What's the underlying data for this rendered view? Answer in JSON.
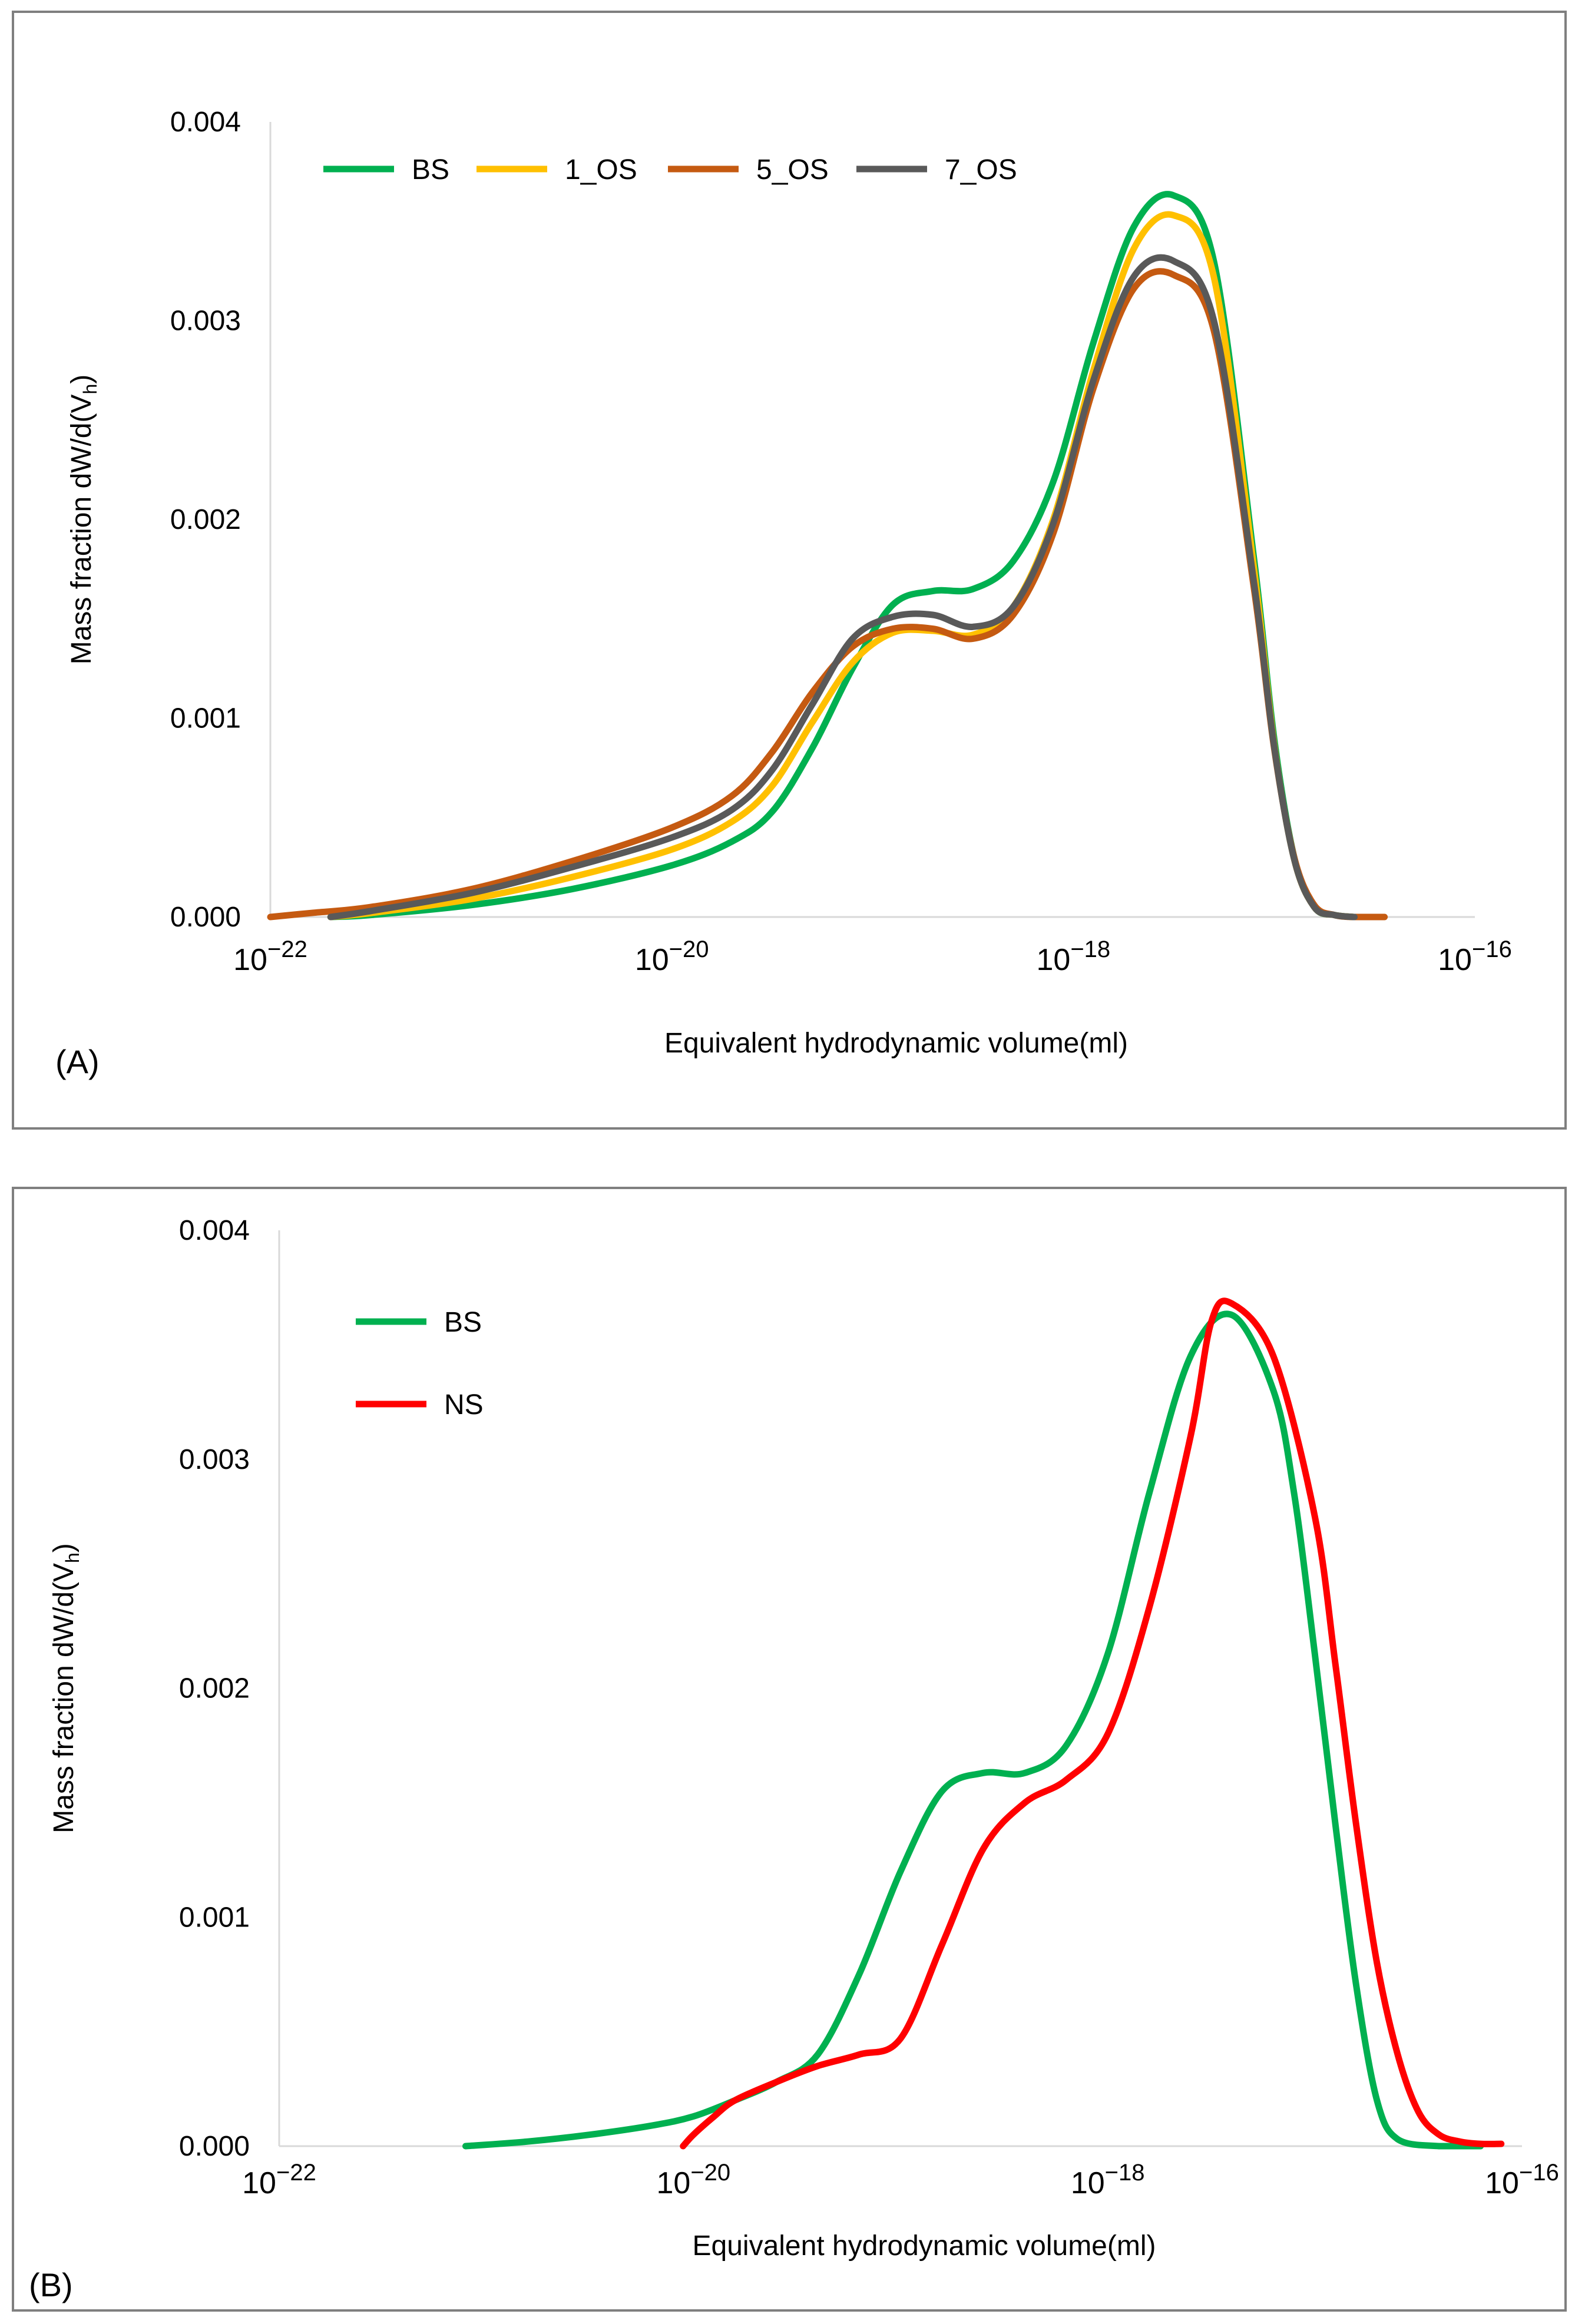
{
  "chart_data": [
    {
      "type": "line",
      "panel_label": "(A)",
      "xscale": "log",
      "xlabel": "Equivalent hydrodynamic volume(ml)",
      "ylabel": "Mass fraction dW/d(V",
      "ylabel_sub": "h",
      "ylabel_close": ")",
      "xlim": [
        1e-22,
        1e-16
      ],
      "ylim": [
        0,
        0.004
      ],
      "x_ticks": [
        {
          "value": 1e-22,
          "base": "10",
          "exp": "−22"
        },
        {
          "value": 1e-20,
          "base": "10",
          "exp": "−20"
        },
        {
          "value": 1e-18,
          "base": "10",
          "exp": "−18"
        },
        {
          "value": 1e-16,
          "base": "10",
          "exp": "−16"
        }
      ],
      "y_ticks": [
        {
          "value": 0,
          "label": "0.000"
        },
        {
          "value": 0.001,
          "label": "0.001"
        },
        {
          "value": 0.002,
          "label": "0.002"
        },
        {
          "value": 0.003,
          "label": "0.003"
        },
        {
          "value": 0.004,
          "label": "0.004"
        }
      ],
      "legend_position": "top-left, horizontal",
      "series": [
        {
          "name": "BS",
          "color": "#00b050",
          "log_x": [
            -21.7,
            -21.5,
            -21.0,
            -20.5,
            -20.0,
            -19.7,
            -19.5,
            -19.3,
            -19.1,
            -18.9,
            -18.7,
            -18.5,
            -18.3,
            -18.1,
            -17.9,
            -17.7,
            -17.5,
            -17.3,
            -17.1,
            -17.0,
            -16.9,
            -16.8,
            -16.7,
            -16.6
          ],
          "y": [
            0,
            1e-05,
            6e-05,
            0.00014,
            0.00026,
            0.00038,
            0.00053,
            0.00085,
            0.00125,
            0.00157,
            0.00164,
            0.00165,
            0.00179,
            0.00219,
            0.00289,
            0.00347,
            0.00363,
            0.0033,
            0.0018,
            0.0009,
            0.0003,
            5e-05,
            1e-05,
            0
          ]
        },
        {
          "name": "1_OS",
          "color": "#ffc000",
          "log_x": [
            -21.7,
            -21.5,
            -21.0,
            -20.5,
            -20.0,
            -19.7,
            -19.5,
            -19.3,
            -19.1,
            -18.9,
            -18.7,
            -18.5,
            -18.3,
            -18.1,
            -17.9,
            -17.7,
            -17.5,
            -17.3,
            -17.1,
            -17.0,
            -16.9,
            -16.8,
            -16.7,
            -16.6
          ],
          "y": [
            0,
            2e-05,
            9e-05,
            0.0002,
            0.00034,
            0.00048,
            0.00066,
            0.00098,
            0.00128,
            0.00143,
            0.00144,
            0.00142,
            0.00156,
            0.002,
            0.00275,
            0.00336,
            0.00353,
            0.00322,
            0.00175,
            0.00087,
            0.00029,
            5e-05,
            1e-05,
            0
          ]
        },
        {
          "name": "5_OS",
          "color": "#c55a11",
          "log_x": [
            -22.0,
            -21.8,
            -21.5,
            -21.0,
            -20.5,
            -20.0,
            -19.7,
            -19.5,
            -19.3,
            -19.1,
            -18.9,
            -18.7,
            -18.5,
            -18.3,
            -18.1,
            -17.9,
            -17.7,
            -17.5,
            -17.3,
            -17.1,
            -17.0,
            -16.9,
            -16.8,
            -16.7,
            -16.6,
            -16.45
          ],
          "y": [
            0,
            2e-05,
            5e-05,
            0.00014,
            0.00028,
            0.00045,
            0.00061,
            0.00083,
            0.00113,
            0.00136,
            0.00145,
            0.00145,
            0.0014,
            0.00152,
            0.00193,
            0.00266,
            0.00316,
            0.00323,
            0.00295,
            0.00165,
            0.00085,
            0.0003,
            6e-05,
            1e-05,
            0,
            0
          ]
        },
        {
          "name": "7_OS",
          "color": "#595959",
          "log_x": [
            -21.7,
            -21.5,
            -21.0,
            -20.5,
            -20.0,
            -19.7,
            -19.5,
            -19.3,
            -19.1,
            -18.9,
            -18.7,
            -18.5,
            -18.3,
            -18.1,
            -17.9,
            -17.7,
            -17.5,
            -17.3,
            -17.1,
            -17.0,
            -16.9,
            -16.8,
            -16.7,
            -16.6
          ],
          "y": [
            0,
            3e-05,
            0.00012,
            0.00025,
            0.0004,
            0.00054,
            0.00074,
            0.00107,
            0.0014,
            0.00151,
            0.00152,
            0.00146,
            0.00156,
            0.00198,
            0.0027,
            0.00322,
            0.0033,
            0.003,
            0.00168,
            0.00086,
            0.00029,
            5e-05,
            1e-05,
            0
          ]
        }
      ]
    },
    {
      "type": "line",
      "panel_label": "(B)",
      "xscale": "log",
      "xlabel": "Equivalent hydrodynamic volume(ml)",
      "ylabel": "Mass fraction dW/d(V",
      "ylabel_sub": "h",
      "ylabel_close": ")",
      "xlim": [
        1e-22,
        1e-16
      ],
      "ylim": [
        0,
        0.004
      ],
      "x_ticks": [
        {
          "value": 1e-22,
          "base": "10",
          "exp": "−22"
        },
        {
          "value": 1e-20,
          "base": "10",
          "exp": "−20"
        },
        {
          "value": 1e-18,
          "base": "10",
          "exp": "−18"
        },
        {
          "value": 1e-16,
          "base": "10",
          "exp": "−16"
        }
      ],
      "y_ticks": [
        {
          "value": 0,
          "label": "0.000"
        },
        {
          "value": 0.001,
          "label": "0.001"
        },
        {
          "value": 0.002,
          "label": "0.002"
        },
        {
          "value": 0.003,
          "label": "0.003"
        },
        {
          "value": 0.004,
          "label": "0.004"
        }
      ],
      "legend_position": "top-left, vertical",
      "series": [
        {
          "name": "BS",
          "color": "#00b050",
          "log_x": [
            -21.1,
            -20.8,
            -20.5,
            -20.2,
            -20.0,
            -19.8,
            -19.6,
            -19.4,
            -19.2,
            -19.0,
            -18.8,
            -18.6,
            -18.4,
            -18.2,
            -18.0,
            -17.8,
            -17.6,
            -17.4,
            -17.2,
            -17.1,
            -17.0,
            -16.9,
            -16.8,
            -16.7,
            -16.6,
            -16.4,
            -16.2
          ],
          "y": [
            0,
            2e-05,
            5e-05,
            9e-05,
            0.00013,
            0.0002,
            0.00028,
            0.0004,
            0.00075,
            0.0012,
            0.00155,
            0.00163,
            0.00163,
            0.00175,
            0.00215,
            0.00285,
            0.00345,
            0.00363,
            0.0033,
            0.00285,
            0.00215,
            0.0014,
            0.0007,
            0.0002,
            3e-05,
            0,
            0
          ]
        },
        {
          "name": "NS",
          "color": "#ff0000",
          "log_x": [
            -20.05,
            -20.0,
            -19.9,
            -19.8,
            -19.6,
            -19.4,
            -19.2,
            -19.0,
            -18.8,
            -18.6,
            -18.4,
            -18.2,
            -18.0,
            -17.8,
            -17.6,
            -17.5,
            -17.4,
            -17.2,
            -17.0,
            -16.9,
            -16.8,
            -16.7,
            -16.6,
            -16.5,
            -16.4,
            -16.3,
            -16.2,
            -16.1
          ],
          "y": [
            0,
            5e-05,
            0.00013,
            0.0002,
            0.00028,
            0.00035,
            0.0004,
            0.00047,
            0.00088,
            0.0013,
            0.0015,
            0.0016,
            0.0018,
            0.00235,
            0.0031,
            0.0036,
            0.00368,
            0.00345,
            0.00275,
            0.0021,
            0.0014,
            0.0008,
            0.0004,
            0.00015,
            5e-05,
            2e-05,
            1e-05,
            1e-05
          ]
        }
      ]
    }
  ]
}
